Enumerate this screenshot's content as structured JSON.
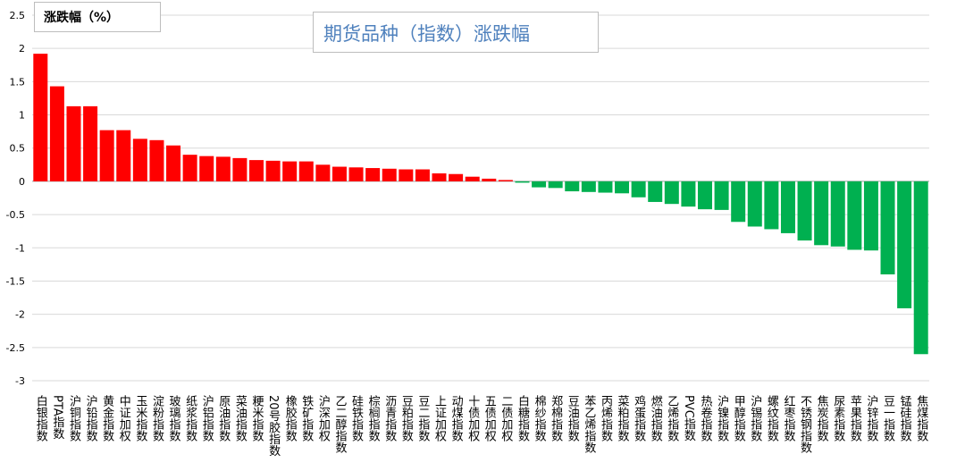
{
  "chart_data": {
    "type": "bar",
    "title": "期货品种（指数）涨跌幅",
    "ylabel": "涨跌幅（%）",
    "xlabel": "",
    "ylim": [
      -3,
      2.5
    ],
    "yticks": [
      2.5,
      2,
      1.5,
      1,
      0.5,
      0,
      -0.5,
      -1,
      -1.5,
      -2,
      -2.5,
      -3
    ],
    "grid": true,
    "positive_color": "#ff0000",
    "negative_color": "#00b050",
    "categories": [
      "白银指数",
      "PTA指数",
      "沪铜指数",
      "沪铅指数",
      "黄金指数",
      "中证加权",
      "玉米指数",
      "淀粉指数",
      "玻璃指数",
      "纸浆指数",
      "沪铝指数",
      "原油指数",
      "菜油指数",
      "粳米指数",
      "20号胶指数",
      "橡胶指数",
      "铁矿指数",
      "沪深加权",
      "乙二醇指数",
      "硅铁指数",
      "棕榈指数",
      "沥青指数",
      "豆粕指数",
      "豆二指数",
      "上证加权",
      "动煤指数",
      "十债加权",
      "五债加权",
      "二债加权",
      "白糖指数",
      "棉纱指数",
      "郑棉指数",
      "豆油指数",
      "苯乙烯指数",
      "丙烯指数",
      "菜粕指数",
      "鸡蛋指数",
      "燃油指数",
      "乙烯指数",
      "PVC指数",
      "热卷指数",
      "沪镍指数",
      "甲醇指数",
      "沪锡指数",
      "螺纹指数",
      "红枣指数",
      "不锈钢指数",
      "焦炭指数",
      "尿素指数",
      "苹果指数",
      "沪锌指数",
      "豆一指数",
      "锰硅指数",
      "焦煤指数"
    ],
    "values": [
      1.92,
      1.43,
      1.13,
      1.13,
      0.77,
      0.77,
      0.64,
      0.62,
      0.54,
      0.4,
      0.38,
      0.37,
      0.35,
      0.32,
      0.31,
      0.3,
      0.3,
      0.25,
      0.22,
      0.21,
      0.2,
      0.19,
      0.18,
      0.18,
      0.12,
      0.11,
      0.07,
      0.04,
      0.02,
      -0.02,
      -0.09,
      -0.1,
      -0.15,
      -0.16,
      -0.17,
      -0.18,
      -0.24,
      -0.31,
      -0.34,
      -0.38,
      -0.42,
      -0.43,
      -0.61,
      -0.68,
      -0.72,
      -0.78,
      -0.89,
      -0.96,
      -0.98,
      -1.03,
      -1.04,
      -1.4,
      -1.91,
      -2.6
    ]
  }
}
